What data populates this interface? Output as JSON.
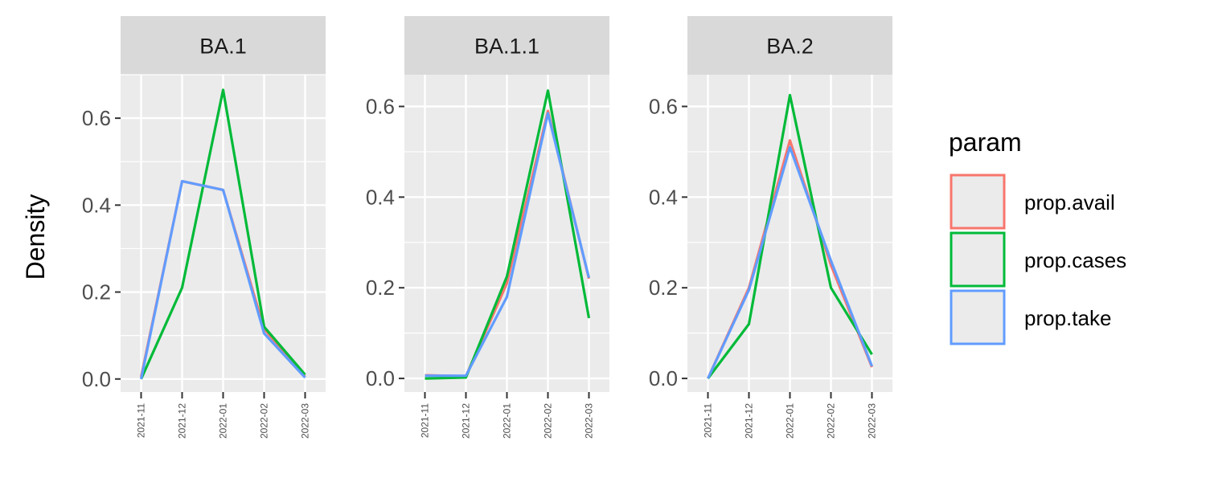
{
  "chart_data": {
    "type": "line",
    "ylabel": "Density",
    "x": [
      "2021-11",
      "2021-12",
      "2022-01",
      "2022-02",
      "2022-03"
    ],
    "series_colors": {
      "prop.avail": "#F8766D",
      "prop.cases": "#00BA38",
      "prop.take": "#619CFF"
    },
    "legend": {
      "title": "param",
      "position": "right",
      "items": [
        "prop.avail",
        "prop.cases",
        "prop.take"
      ]
    },
    "grid": true,
    "facets": [
      {
        "strip": "BA.1",
        "ylim": [
          -0.03,
          0.7
        ],
        "yticks": [
          "0.0",
          "0.2",
          "0.4",
          "0.6"
        ],
        "series": [
          {
            "name": "prop.avail",
            "values": [
              0.005,
              0.455,
              0.435,
              0.115,
              0.005
            ]
          },
          {
            "name": "prop.cases",
            "values": [
              0.0,
              0.21,
              0.665,
              0.12,
              0.01
            ]
          },
          {
            "name": "prop.take",
            "values": [
              0.0,
              0.455,
              0.435,
              0.105,
              0.003
            ]
          }
        ]
      },
      {
        "strip": "BA.1.1",
        "ylim": [
          -0.03,
          0.67
        ],
        "yticks": [
          "0.0",
          "0.2",
          "0.4",
          "0.6"
        ],
        "series": [
          {
            "name": "prop.avail",
            "values": [
              0.007,
              0.005,
              0.21,
              0.59,
              0.22
            ]
          },
          {
            "name": "prop.cases",
            "values": [
              0.0,
              0.002,
              0.225,
              0.635,
              0.133
            ]
          },
          {
            "name": "prop.take",
            "values": [
              0.006,
              0.006,
              0.18,
              0.585,
              0.222
            ]
          }
        ]
      },
      {
        "strip": "BA.2",
        "ylim": [
          -0.03,
          0.67
        ],
        "yticks": [
          "0.0",
          "0.2",
          "0.4",
          "0.6"
        ],
        "series": [
          {
            "name": "prop.avail",
            "values": [
              0.0,
              0.2,
              0.525,
              0.25,
              0.025
            ]
          },
          {
            "name": "prop.cases",
            "values": [
              0.0,
              0.12,
              0.625,
              0.2,
              0.053
            ]
          },
          {
            "name": "prop.take",
            "values": [
              0.0,
              0.195,
              0.51,
              0.26,
              0.027
            ]
          }
        ]
      }
    ]
  }
}
